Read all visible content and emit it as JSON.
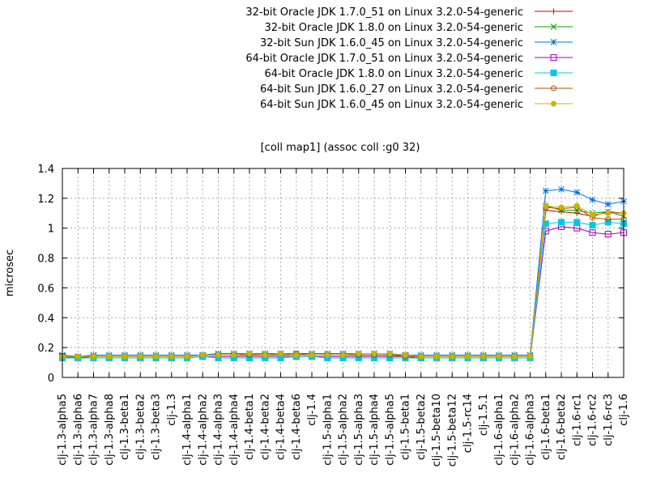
{
  "chart_data": {
    "type": "line",
    "title": "[coll map1] (assoc coll :g0 32)",
    "xlabel": "",
    "ylabel": "microsec",
    "ylim": [
      0,
      1.4
    ],
    "yticks": [
      "0",
      "0.2",
      "0.4",
      "0.6",
      "0.8",
      "1",
      "1.2",
      "1.4"
    ],
    "ytick_values": [
      0,
      0.2,
      0.4,
      0.6,
      0.8,
      1.0,
      1.2,
      1.4
    ],
    "grid": true,
    "legend_position": "top-right",
    "categories": [
      "clj-1.3-alpha5",
      "clj-1.3-alpha6",
      "clj-1.3-alpha7",
      "clj-1.3-alpha8",
      "clj-1.3-beta1",
      "clj-1.3-beta2",
      "clj-1.3-beta3",
      "clj-1.3",
      "clj-1.4-alpha1",
      "clj-1.4-alpha2",
      "clj-1.4-alpha3",
      "clj-1.4-alpha4",
      "clj-1.4-beta1",
      "clj-1.4-beta2",
      "clj-1.4-beta4",
      "clj-1.4-beta6",
      "clj-1.4",
      "clj-1.5-alpha1",
      "clj-1.5-alpha2",
      "clj-1.5-alpha3",
      "clj-1.5-alpha4",
      "clj-1.5-alpha5",
      "clj-1.5-beta1",
      "clj-1.5-beta2",
      "clj-1.5-beta10",
      "clj-1.5-beta12",
      "clj-1.5-rc14",
      "clj-1.5.1",
      "clj-1.6-alpha1",
      "clj-1.6-alpha2",
      "clj-1.6-alpha3",
      "clj-1.6-beta1",
      "clj-1.6-beta2",
      "clj-1.6-rc1",
      "clj-1.6-rc2",
      "clj-1.6-rc3",
      "clj-1.6"
    ],
    "series": [
      {
        "name": "32-bit Oracle JDK 1.7.0_51 on Linux 3.2.0-54-generic",
        "color": "#cc0000",
        "marker": "plus",
        "values": [
          0.14,
          0.13,
          0.14,
          0.14,
          0.14,
          0.14,
          0.14,
          0.14,
          0.14,
          0.15,
          0.15,
          0.15,
          0.15,
          0.15,
          0.15,
          0.15,
          0.15,
          0.15,
          0.15,
          0.15,
          0.15,
          0.15,
          0.15,
          0.14,
          0.14,
          0.14,
          0.14,
          0.14,
          0.14,
          0.14,
          0.14,
          1.12,
          1.11,
          1.1,
          1.08,
          1.11,
          1.1
        ]
      },
      {
        "name": "32-bit Oracle JDK 1.8.0 on Linux 3.2.0-54-generic",
        "color": "#00a000",
        "marker": "x",
        "values": [
          0.14,
          0.14,
          0.14,
          0.14,
          0.14,
          0.14,
          0.14,
          0.14,
          0.14,
          0.15,
          0.15,
          0.15,
          0.15,
          0.15,
          0.15,
          0.15,
          0.15,
          0.15,
          0.15,
          0.15,
          0.15,
          0.15,
          0.15,
          0.14,
          0.14,
          0.14,
          0.14,
          0.14,
          0.14,
          0.14,
          0.14,
          1.15,
          1.12,
          1.12,
          1.1,
          1.11,
          1.08
        ]
      },
      {
        "name": "32-bit Sun JDK 1.6.0_45 on Linux 3.2.0-54-generic",
        "color": "#0070e0",
        "marker": "star",
        "values": [
          0.15,
          0.14,
          0.15,
          0.15,
          0.15,
          0.15,
          0.15,
          0.15,
          0.15,
          0.15,
          0.16,
          0.16,
          0.16,
          0.16,
          0.16,
          0.16,
          0.16,
          0.16,
          0.16,
          0.16,
          0.16,
          0.16,
          0.15,
          0.15,
          0.15,
          0.15,
          0.15,
          0.15,
          0.15,
          0.15,
          0.15,
          1.25,
          1.26,
          1.24,
          1.19,
          1.16,
          1.18
        ]
      },
      {
        "name": "64-bit Oracle JDK 1.7.0_51 on Linux 3.2.0-54-generic",
        "color": "#a000c0",
        "marker": "square-open",
        "values": [
          0.14,
          0.13,
          0.13,
          0.13,
          0.13,
          0.13,
          0.13,
          0.13,
          0.13,
          0.14,
          0.14,
          0.14,
          0.14,
          0.14,
          0.14,
          0.14,
          0.14,
          0.14,
          0.14,
          0.14,
          0.14,
          0.14,
          0.14,
          0.13,
          0.13,
          0.13,
          0.13,
          0.13,
          0.13,
          0.13,
          0.13,
          0.98,
          1.01,
          1.0,
          0.97,
          0.96,
          0.97
        ]
      },
      {
        "name": "64-bit Oracle JDK 1.8.0 on Linux 3.2.0-54-generic",
        "color": "#00c8e0",
        "marker": "square-filled",
        "values": [
          0.13,
          0.13,
          0.13,
          0.13,
          0.13,
          0.13,
          0.13,
          0.13,
          0.13,
          0.14,
          0.13,
          0.13,
          0.13,
          0.13,
          0.13,
          0.14,
          0.14,
          0.13,
          0.13,
          0.13,
          0.13,
          0.13,
          0.13,
          0.13,
          0.13,
          0.13,
          0.13,
          0.13,
          0.13,
          0.13,
          0.13,
          1.03,
          1.04,
          1.04,
          1.02,
          1.04,
          1.03
        ]
      },
      {
        "name": "64-bit Sun JDK 1.6.0_27 on Linux 3.2.0-54-generic",
        "color": "#b05000",
        "marker": "circle-open",
        "values": [
          0.14,
          0.14,
          0.14,
          0.14,
          0.14,
          0.14,
          0.14,
          0.14,
          0.14,
          0.15,
          0.15,
          0.15,
          0.15,
          0.15,
          0.16,
          0.16,
          0.15,
          0.15,
          0.15,
          0.15,
          0.15,
          0.15,
          0.14,
          0.14,
          0.14,
          0.14,
          0.14,
          0.14,
          0.14,
          0.14,
          0.14,
          1.14,
          1.13,
          1.14,
          1.07,
          1.06,
          1.06
        ]
      },
      {
        "name": "64-bit Sun JDK 1.6.0_45 on Linux 3.2.0-54-generic",
        "color": "#c8b400",
        "marker": "circle-filled",
        "values": [
          0.14,
          0.14,
          0.14,
          0.14,
          0.14,
          0.14,
          0.14,
          0.14,
          0.14,
          0.15,
          0.15,
          0.15,
          0.16,
          0.15,
          0.16,
          0.15,
          0.15,
          0.15,
          0.15,
          0.16,
          0.16,
          0.16,
          0.15,
          0.14,
          0.14,
          0.14,
          0.14,
          0.14,
          0.14,
          0.14,
          0.14,
          1.15,
          1.14,
          1.15,
          1.09,
          1.1,
          1.1
        ]
      }
    ]
  }
}
